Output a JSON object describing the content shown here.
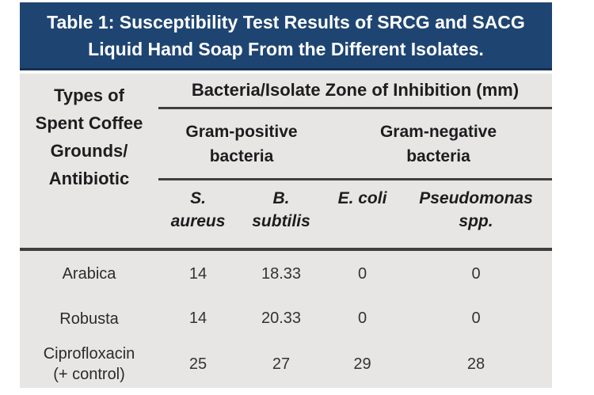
{
  "banner": {
    "title": "Table 1: Susceptibility Test Results of SRCG and SACG Liquid Hand Soap From the Different Isolates.",
    "bg_color": "#1e4572",
    "text_color": "#ffffff"
  },
  "table": {
    "bg_color": "#e7e6e4",
    "rule_color": "#3f3f3f",
    "col1_header": {
      "lines": [
        "Types of",
        "Spent Coffee",
        "Grounds/",
        "Antibiotic"
      ]
    },
    "span_header": "Bacteria/Isolate Zone of Inhibition (mm)",
    "groups": [
      {
        "l1": "Gram-positive",
        "l2": "bacteria"
      },
      {
        "l1": "Gram-negative",
        "l2": "bacteria"
      }
    ],
    "species": [
      {
        "l1": "S.",
        "l2": "aureus"
      },
      {
        "l1": "B.",
        "l2": "subtilis"
      },
      {
        "l1": "E. coli",
        "l2": ""
      },
      {
        "l1": "Pseudomonas",
        "l2": "spp."
      }
    ],
    "rows": [
      {
        "label": "Arabica",
        "label2": "",
        "values": [
          "14",
          "18.33",
          "0",
          "0"
        ]
      },
      {
        "label": "Robusta",
        "label2": "",
        "values": [
          "14",
          "20.33",
          "0",
          "0"
        ]
      },
      {
        "label": "Ciprofloxacin",
        "label2": "(+ control)",
        "values": [
          "25",
          "27",
          "29",
          "28"
        ]
      }
    ]
  },
  "chart_data": {
    "type": "table",
    "title": "Table 1: Susceptibility Test Results of SRCG and SACG Liquid Hand Soap From the Different Isolates.",
    "unit_header": "Bacteria/Isolate Zone of Inhibition (mm)",
    "column_groups": [
      {
        "name": "Gram-positive bacteria",
        "columns": [
          "S. aureus",
          "B. subtilis"
        ]
      },
      {
        "name": "Gram-negative bacteria",
        "columns": [
          "E. coli",
          "Pseudomonas spp."
        ]
      }
    ],
    "row_header": "Types of Spent Coffee Grounds/Antibiotic",
    "rows": [
      {
        "label": "Arabica",
        "values": [
          14,
          18.33,
          0,
          0
        ]
      },
      {
        "label": "Robusta",
        "values": [
          14,
          20.33,
          0,
          0
        ]
      },
      {
        "label": "Ciprofloxacin (+ control)",
        "values": [
          25,
          27,
          29,
          28
        ]
      }
    ]
  }
}
